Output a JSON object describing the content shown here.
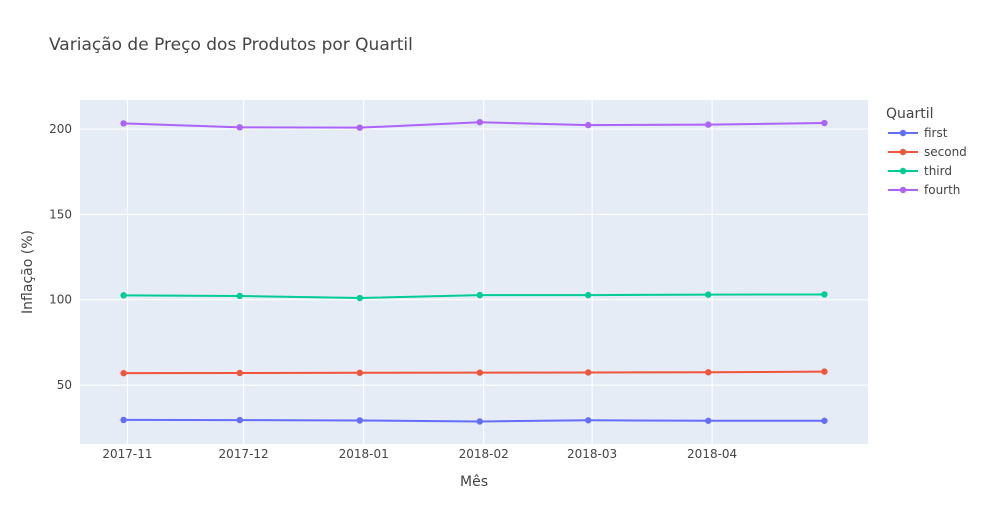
{
  "chart_data": {
    "type": "line",
    "title": "Variação de Preço dos Produtos por Quartil",
    "xlabel": "Mês",
    "ylabel": "Inflação (%)",
    "x": [
      "2017-10-31",
      "2017-11-30",
      "2017-12-31",
      "2018-01-31",
      "2018-02-28",
      "2018-03-31",
      "2018-04-30"
    ],
    "xtick_labels": [
      "2017-11",
      "2017-12",
      "2018-01",
      "2018-02",
      "2018-03",
      "2018-04"
    ],
    "yticks": [
      50,
      100,
      150,
      200
    ],
    "ylim": [
      15.5,
      217
    ],
    "grid": true,
    "legend_title": "Quartil",
    "legend_position": "right",
    "series": [
      {
        "name": "first",
        "color": "#636efa",
        "values": [
          29.6,
          29.5,
          29.3,
          28.7,
          29.4,
          29.1,
          29.1
        ]
      },
      {
        "name": "second",
        "color": "#ef553b",
        "values": [
          57.0,
          57.1,
          57.2,
          57.3,
          57.4,
          57.5,
          57.9
        ]
      },
      {
        "name": "third",
        "color": "#00cc96",
        "values": [
          102.6,
          102.2,
          101.0,
          102.7,
          102.7,
          103.0,
          103.1
        ]
      },
      {
        "name": "fourth",
        "color": "#ab63fa",
        "values": [
          203.3,
          201.0,
          200.8,
          204.0,
          202.3,
          202.6,
          203.5
        ]
      }
    ]
  }
}
